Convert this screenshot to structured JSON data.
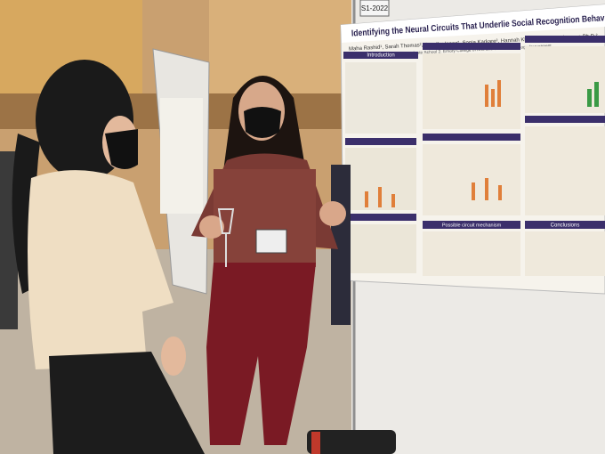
{
  "sign": "S1-2022",
  "poster": {
    "title": "Identifying the Neural Circuits That Underlie Social Recognition Behav",
    "authors": "Maha Rashid¹, Sarah Thomas², Jennifer Isaac², Sonia Karkare², Hannah Klein², Malavika Murugan Ph.D.²",
    "affiliation": "1. Emory Laney Graduate School 2. Emory College of Arts and Sciences, Biology Department",
    "sections": [
      "Introduction",
      "Possible circuit mechanism",
      "Conclusions"
    ]
  }
}
